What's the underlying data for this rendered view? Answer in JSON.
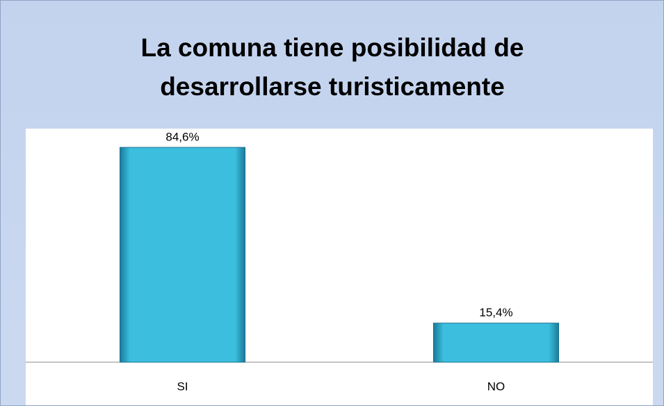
{
  "chart_data": {
    "type": "bar",
    "title": "La comuna tiene posibilidad de desarrollarse turisticamente",
    "categories": [
      "SI",
      "NO"
    ],
    "values": [
      84.6,
      15.4
    ],
    "value_labels": [
      "84,6%",
      "15,4%"
    ],
    "color": "#3cbfdf"
  }
}
